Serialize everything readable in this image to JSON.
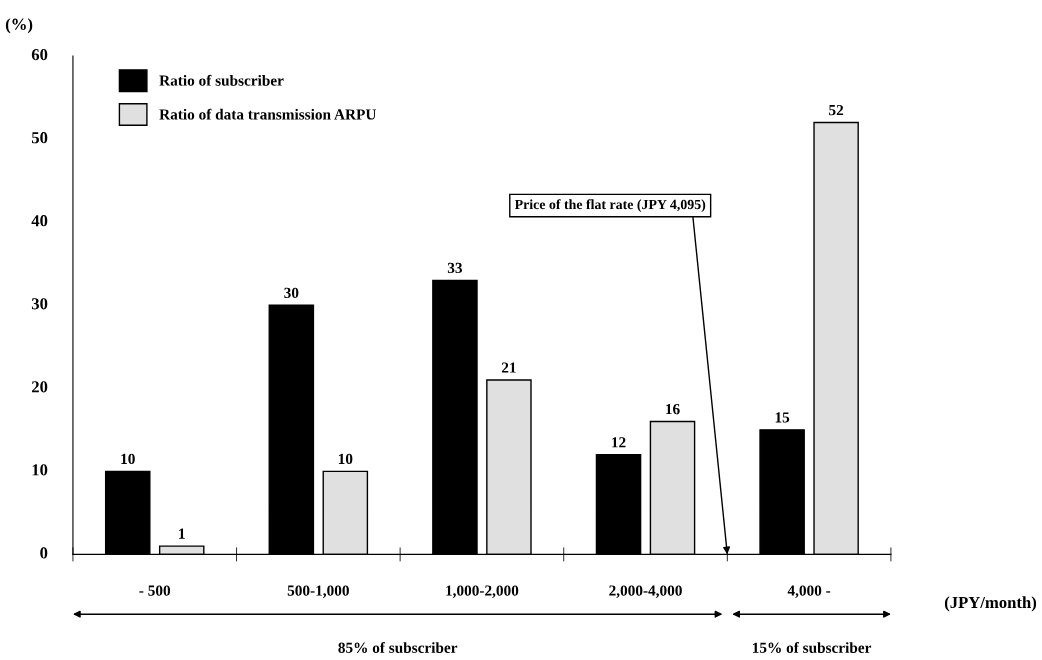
{
  "chart_data": {
    "type": "bar",
    "categories": [
      "- 500",
      "500-1,000",
      "1,000-2,000",
      "2,000-4,000",
      "4,000 -"
    ],
    "series": [
      {
        "name": "Ratio of subscriber",
        "color": "#000000",
        "values": [
          10,
          30,
          33,
          12,
          15
        ]
      },
      {
        "name": "Ratio of data transmission ARPU",
        "color": "#e0e0e0",
        "values": [
          1,
          10,
          21,
          16,
          52
        ]
      }
    ],
    "ylabel": "(%)",
    "xlabel": "(JPY/month)",
    "ylim": [
      0,
      60
    ],
    "yticks": [
      0,
      10,
      20,
      30,
      40,
      50,
      60
    ],
    "data_labels": true,
    "legend": "top left",
    "grid": false,
    "annotations": [
      "Price of the flat rate (JPY 4,095)",
      "85% of subscriber",
      "15% of subscriber"
    ]
  }
}
